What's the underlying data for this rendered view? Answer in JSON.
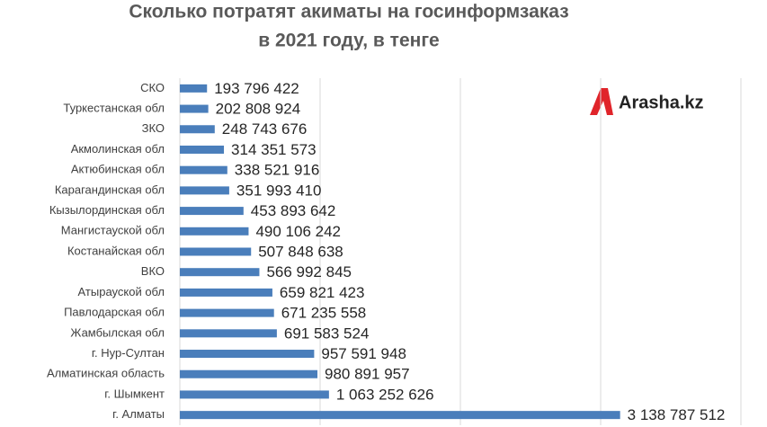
{
  "chart_data": {
    "type": "bar",
    "orientation": "horizontal",
    "title": [
      "Сколько потратят акиматы на госинформзаказ",
      "в 2021 году, в тенге"
    ],
    "logo": "Arasha.kz",
    "categories": [
      "СКО",
      "Туркестанская обл",
      "ЗКО",
      "Акмолинская обл",
      "Актюбинская обл",
      "Карагандинская обл",
      "Кызылординская обл",
      "Мангистауской обл",
      "Костанайская обл",
      "ВКО",
      "Атырауской обл",
      "Павлодарская обл",
      "Жамбылская обл",
      "г. Нур-Султан",
      "Алматинская область",
      "г. Шымкент",
      "г. Алматы"
    ],
    "values": [
      193796422,
      202808924,
      248743676,
      314351573,
      338521916,
      351993410,
      453893642,
      490106242,
      507848638,
      566992845,
      659821423,
      671235558,
      691583524,
      957591948,
      980891957,
      1063252626,
      3138787512
    ],
    "value_labels": [
      "193 796 422",
      "202 808 924",
      "248 743 676",
      "314 351 573",
      "338 521 916",
      "351 993 410",
      "453 893 642",
      "490 106 242",
      "507 848 638",
      "566 992 845",
      "659 821 423",
      "671 235 558",
      "691 583 524",
      "957 591 948",
      "980 891 957",
      "1 063 252 626",
      "3 138 787 512"
    ],
    "color": "#4a7ebb",
    "xlim": [
      0,
      4000000000
    ],
    "xticks": [
      0,
      1000000000,
      2000000000,
      3000000000,
      4000000000
    ],
    "grid": true
  }
}
